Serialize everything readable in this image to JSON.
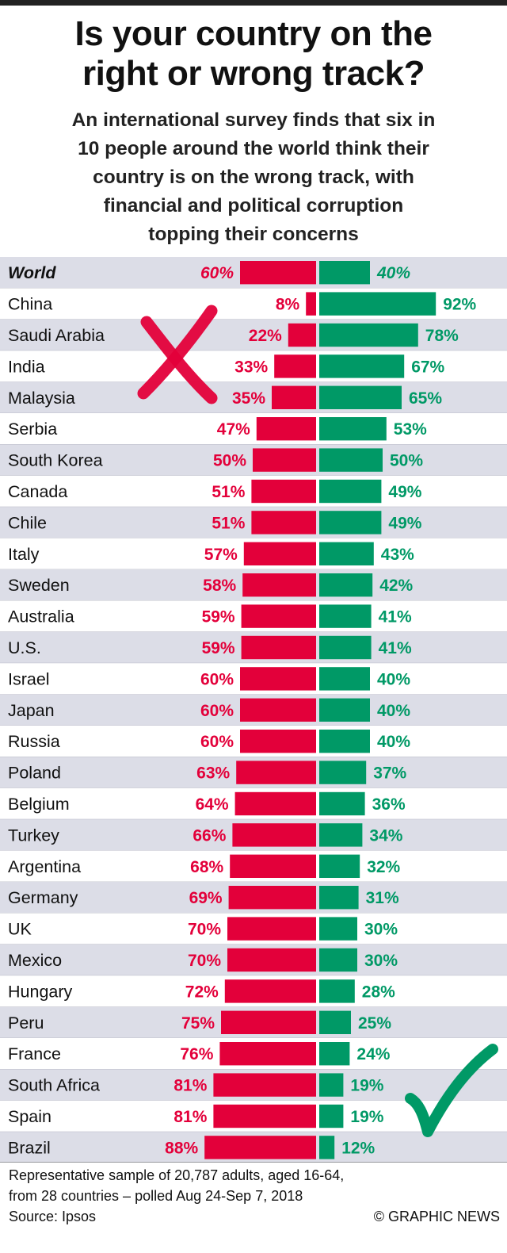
{
  "title_line1": "Is your country on the",
  "title_line2": "right or wrong track?",
  "subtitle_lines": [
    "An international survey finds that six in",
    "10 people around the world think their",
    "country is on the wrong track, with",
    "financial and political corruption",
    "topping their concerns"
  ],
  "colors": {
    "wrong": "#e3003a",
    "right": "#009966",
    "row_shade": "#dcdde7",
    "row_plain": "#ffffff"
  },
  "icons": [
    "cross-mark-icon",
    "check-mark-icon"
  ],
  "chart_data": {
    "type": "bar",
    "orientation": "horizontal-diverging",
    "series": [
      {
        "name": "wrong track",
        "color": "#e3003a",
        "values": [
          60,
          8,
          22,
          33,
          35,
          47,
          50,
          51,
          51,
          57,
          58,
          59,
          59,
          60,
          60,
          60,
          63,
          64,
          66,
          68,
          69,
          70,
          70,
          72,
          75,
          76,
          81,
          81,
          88
        ]
      },
      {
        "name": "right track",
        "color": "#009966",
        "values": [
          40,
          92,
          78,
          67,
          65,
          53,
          50,
          49,
          49,
          43,
          42,
          41,
          41,
          40,
          40,
          40,
          37,
          36,
          34,
          32,
          31,
          30,
          30,
          28,
          25,
          24,
          19,
          19,
          12
        ]
      }
    ],
    "categories": [
      "World",
      "China",
      "Saudi Arabia",
      "India",
      "Malaysia",
      "Serbia",
      "South Korea",
      "Canada",
      "Chile",
      "Italy",
      "Sweden",
      "Australia",
      "U.S.",
      "Israel",
      "Japan",
      "Russia",
      "Poland",
      "Belgium",
      "Turkey",
      "Argentina",
      "Germany",
      "UK",
      "Mexico",
      "Hungary",
      "Peru",
      "France",
      "South Africa",
      "Spain",
      "Brazil"
    ],
    "unit": "%",
    "xlim": [
      0,
      100
    ]
  },
  "footer": {
    "note_line1": "Representative sample of 20,787 adults, aged 16-64,",
    "note_line2": "from 28 countries – polled Aug 24-Sep 7, 2018",
    "source": "Source: Ipsos",
    "credit": "© GRAPHIC NEWS"
  }
}
